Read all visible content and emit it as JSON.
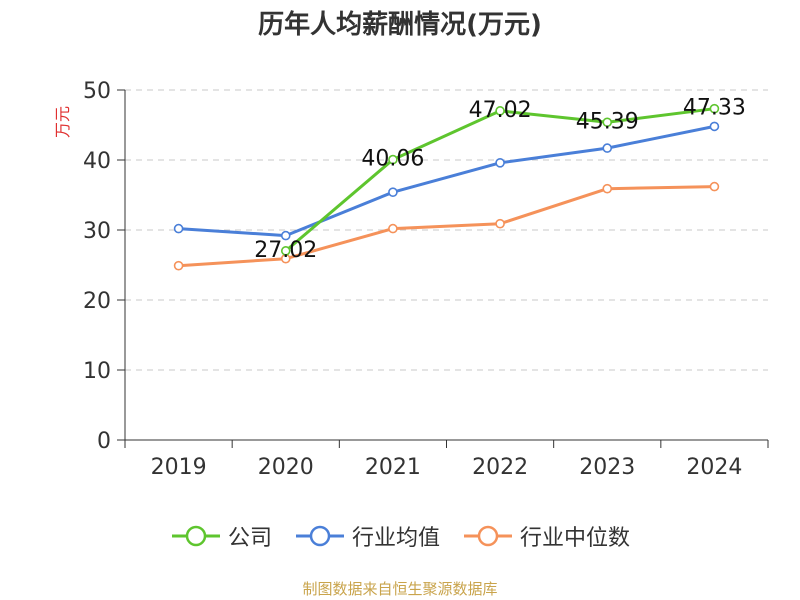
{
  "chart_data": {
    "type": "line",
    "title": "历年人均薪酬情况(万元)",
    "ylabel": "万元",
    "xlabel": "",
    "categories": [
      "2019",
      "2020",
      "2021",
      "2022",
      "2023",
      "2024"
    ],
    "ylim": [
      0,
      50
    ],
    "yticks": [
      0,
      10,
      20,
      30,
      40,
      50
    ],
    "grid": true,
    "legend_position": "bottom",
    "series": [
      {
        "name": "公司",
        "color": "#5ec52e",
        "values": [
          null,
          27.02,
          40.06,
          47.02,
          45.39,
          47.33
        ],
        "labels": [
          "",
          "27.02",
          "40.06",
          "47.02",
          "45.39",
          "47.33"
        ]
      },
      {
        "name": "行业均值",
        "color": "#4a7fd8",
        "values": [
          30.2,
          29.2,
          35.4,
          39.6,
          41.7,
          44.8
        ]
      },
      {
        "name": "行业中位数",
        "color": "#f5925a",
        "values": [
          24.9,
          25.9,
          30.2,
          30.9,
          35.9,
          36.2
        ]
      }
    ]
  },
  "source": "制图数据来自恒生聚源数据库"
}
